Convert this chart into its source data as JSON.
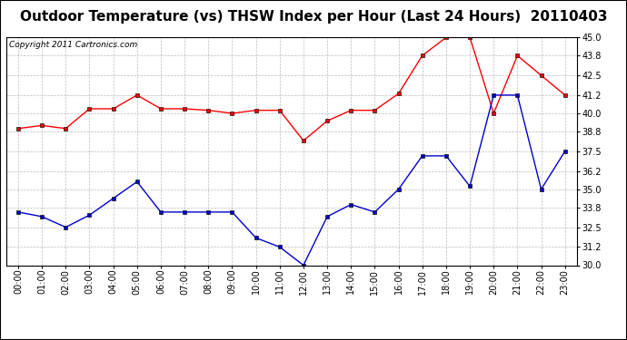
{
  "title": "Outdoor Temperature (vs) THSW Index per Hour (Last 24 Hours)  20110403",
  "copyright": "Copyright 2011 Cartronics.com",
  "hours": [
    "00:00",
    "01:00",
    "02:00",
    "03:00",
    "04:00",
    "05:00",
    "06:00",
    "07:00",
    "08:00",
    "09:00",
    "10:00",
    "11:00",
    "12:00",
    "13:00",
    "14:00",
    "15:00",
    "16:00",
    "17:00",
    "18:00",
    "19:00",
    "20:00",
    "21:00",
    "22:00",
    "23:00"
  ],
  "red_data": [
    39.0,
    39.2,
    39.0,
    40.3,
    40.3,
    41.2,
    40.3,
    40.3,
    40.2,
    40.0,
    40.2,
    40.2,
    38.2,
    39.5,
    40.2,
    40.2,
    41.3,
    43.8,
    45.0,
    45.0,
    40.0,
    43.8,
    42.5,
    41.2
  ],
  "blue_data": [
    33.5,
    33.2,
    32.5,
    33.3,
    34.4,
    35.5,
    33.5,
    33.5,
    33.5,
    33.5,
    31.8,
    31.2,
    30.0,
    33.2,
    34.0,
    33.5,
    35.0,
    37.2,
    37.2,
    35.2,
    41.2,
    41.2,
    35.0,
    37.5
  ],
  "red_color": "#ff0000",
  "blue_color": "#0000cc",
  "background_color": "#ffffff",
  "plot_bg_color": "#ffffff",
  "grid_color": "#bbbbbb",
  "ylim": [
    30.0,
    45.0
  ],
  "yticks": [
    30.0,
    31.2,
    32.5,
    33.8,
    35.0,
    36.2,
    37.5,
    38.8,
    40.0,
    41.2,
    42.5,
    43.8,
    45.0
  ],
  "title_fontsize": 11,
  "copyright_fontsize": 6.5,
  "tick_fontsize": 7,
  "border_color": "#000000"
}
